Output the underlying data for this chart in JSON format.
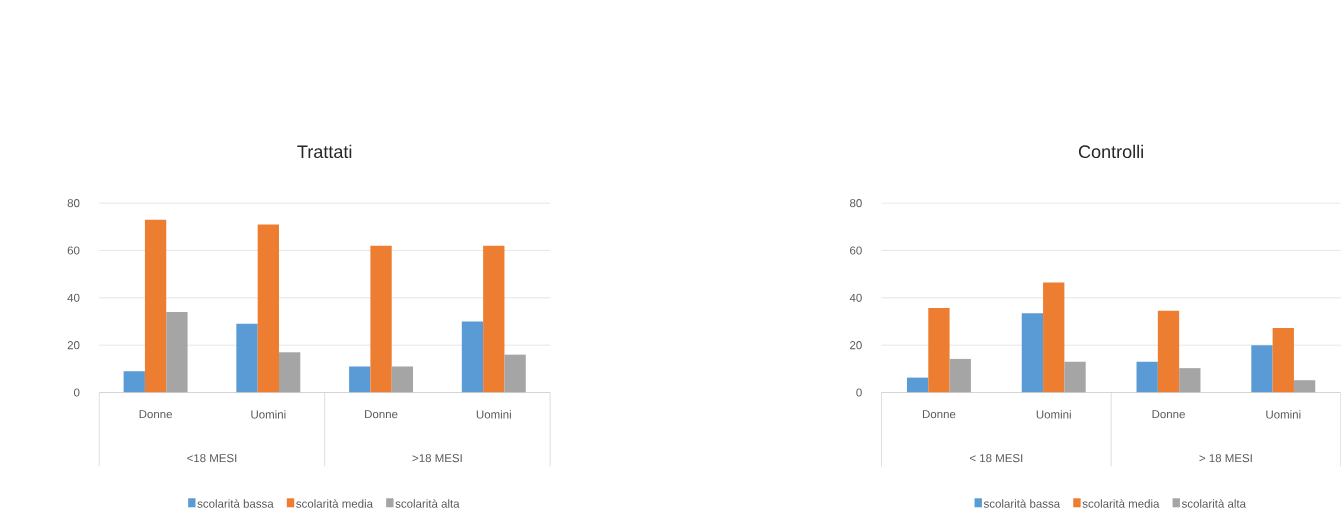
{
  "chart_data": [
    {
      "type": "bar",
      "title": "Trattati",
      "categories": [
        "Donne",
        "Uomini",
        "Donne",
        "Uomini"
      ],
      "series": [
        {
          "name": "scolarità bassa",
          "color": "#5b9bd5",
          "values": [
            9,
            29,
            11,
            30
          ]
        },
        {
          "name": "scolarità media",
          "color": "#ed7d31",
          "values": [
            73,
            71,
            62,
            62
          ]
        },
        {
          "name": "scolarità alta",
          "color": "#a5a5a5",
          "values": [
            34,
            17,
            11,
            16
          ]
        }
      ],
      "annotations": [
        "<18 MESI",
        ">18 MESI"
      ],
      "ylim": [
        0,
        80
      ],
      "yticks": [
        0,
        20,
        40,
        60,
        80
      ],
      "grid": "y",
      "legend": "bottom"
    },
    {
      "type": "bar",
      "title": "Controlli",
      "categories": [
        "Donne",
        "Uomini",
        "Donne",
        "Uomini"
      ],
      "series": [
        {
          "name": "scolarità bassa",
          "color": "#5b9bd5",
          "values": [
            6.3,
            33.5,
            13,
            20
          ]
        },
        {
          "name": "scolarità media",
          "color": "#ed7d31",
          "values": [
            35.7,
            46.5,
            34.5,
            27.3
          ]
        },
        {
          "name": "scolarità alta",
          "color": "#a5a5a5",
          "values": [
            14.2,
            13,
            10.3,
            5.2
          ]
        }
      ],
      "annotations": [
        "< 18 MESI",
        "> 18 MESI"
      ],
      "ylim": [
        0,
        80
      ],
      "yticks": [
        0,
        20,
        40,
        60,
        80
      ],
      "grid": "y",
      "legend": "bottom"
    }
  ]
}
